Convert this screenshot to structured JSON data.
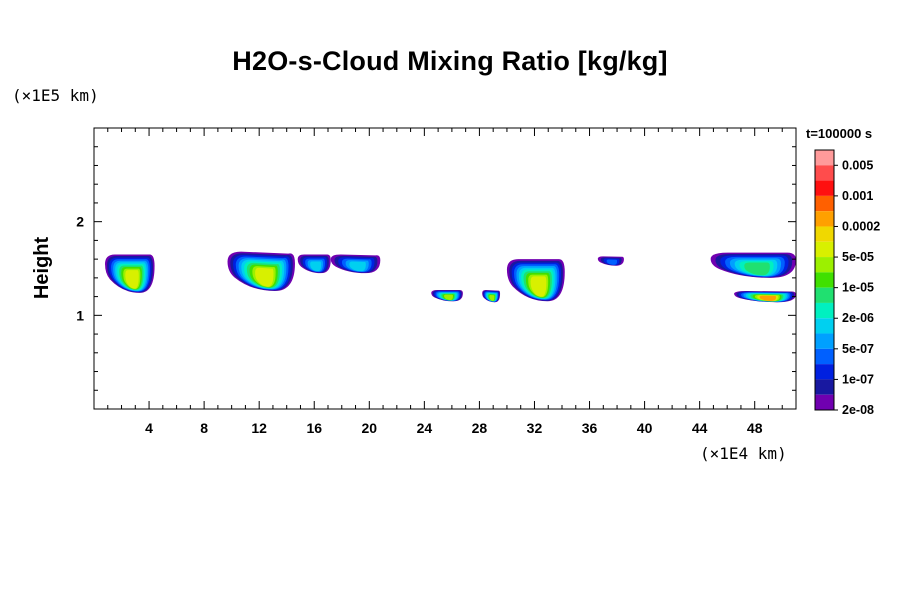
{
  "chart_data": {
    "type": "heatmap",
    "title": "H2O-s-Cloud Mixing Ratio [kg/kg]",
    "xlabel": "",
    "ylabel": "Height",
    "x_unit": "(×1E4 km)",
    "y_unit": "(×1E5 km)",
    "time_label": "t=100000 s",
    "xlim": [
      0,
      51
    ],
    "ylim": [
      0,
      3
    ],
    "x_ticks": [
      4,
      8,
      12,
      16,
      20,
      24,
      28,
      32,
      36,
      40,
      44,
      48
    ],
    "y_ticks": [
      1,
      2
    ],
    "colorbar": {
      "labels": [
        "0.005",
        "0.001",
        "0.0002",
        "5e-05",
        "1e-05",
        "2e-06",
        "5e-07",
        "1e-07",
        "2e-08"
      ],
      "colors": [
        "#ff9a9a",
        "#ff4c4c",
        "#ff1010",
        "#ff6000",
        "#ffa000",
        "#f0d800",
        "#d8f000",
        "#9cf000",
        "#40e000",
        "#20e070",
        "#00f0c0",
        "#00d0f0",
        "#00a0ff",
        "#0060ff",
        "#0020e0",
        "#1818a0",
        "#7000b0"
      ]
    },
    "cloud_regions": [
      {
        "x_range": [
          0.8,
          4.4
        ],
        "y_range": [
          1.24,
          1.65
        ],
        "max_level": "5e-05"
      },
      {
        "x_range": [
          9.7,
          14.6
        ],
        "y_range": [
          1.26,
          1.68
        ],
        "max_level": "5e-05"
      },
      {
        "x_range": [
          14.8,
          17.2
        ],
        "y_range": [
          1.45,
          1.65
        ],
        "max_level": "5e-07"
      },
      {
        "x_range": [
          17.2,
          20.8
        ],
        "y_range": [
          1.45,
          1.65
        ],
        "max_level": "5e-07"
      },
      {
        "x_range": [
          24.5,
          26.8
        ],
        "y_range": [
          1.15,
          1.27
        ],
        "max_level": "1e-05"
      },
      {
        "x_range": [
          28.2,
          29.5
        ],
        "y_range": [
          1.14,
          1.27
        ],
        "max_level": "1e-05"
      },
      {
        "x_range": [
          30.0,
          34.2
        ],
        "y_range": [
          1.15,
          1.6
        ],
        "max_level": "5e-05"
      },
      {
        "x_range": [
          36.6,
          38.5
        ],
        "y_range": [
          1.53,
          1.63
        ],
        "max_level": "1e-07"
      },
      {
        "x_range": [
          44.8,
          51.0
        ],
        "y_range": [
          1.4,
          1.67
        ],
        "max_level": "2e-06"
      },
      {
        "x_range": [
          46.5,
          51.0
        ],
        "y_range": [
          1.14,
          1.26
        ],
        "max_level": "0.0002"
      }
    ]
  }
}
